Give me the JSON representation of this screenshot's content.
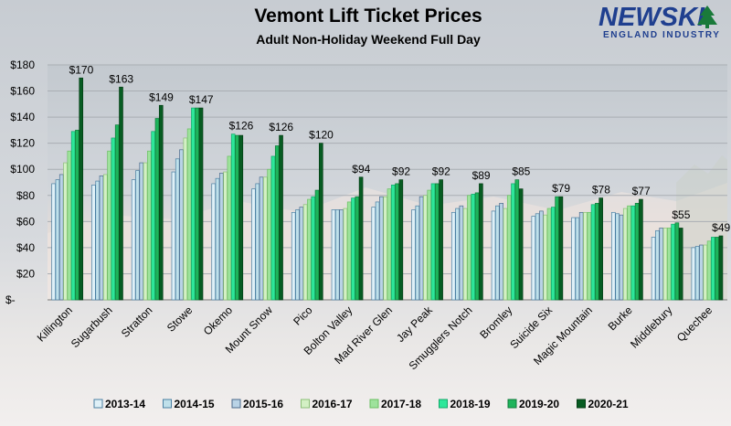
{
  "logo": {
    "main": "NEWSKI",
    "sub": "ENGLAND INDUSTRY"
  },
  "colors": {
    "series": [
      "#dff0f7",
      "#bfe0ea",
      "#b9d3e6",
      "#d3f0c4",
      "#9ee29c",
      "#2ee79a",
      "#1eb45b",
      "#075c22"
    ],
    "borders": [
      "#4a7fa2",
      "#4a7fa2",
      "#4a6a8a",
      "#8bbf77",
      "#6bbf62",
      "#13a86a",
      "#0e7a3a",
      "#043d14"
    ]
  },
  "chart_data": {
    "type": "bar",
    "title": "Vemont Lift Ticket Prices",
    "subtitle": "Adult Non-Holiday Weekend Full Day",
    "ylim": [
      0,
      180
    ],
    "yticks": [
      0,
      20,
      40,
      60,
      80,
      100,
      120,
      140,
      160,
      180
    ],
    "ytick_labels": [
      "$-",
      "$20",
      "$40",
      "$60",
      "$80",
      "$100",
      "$120",
      "$140",
      "$160",
      "$180"
    ],
    "categories": [
      "Killington",
      "Sugarbush",
      "Stratton",
      "Stowe",
      "Okemo",
      "Mount Snow",
      "Pico",
      "Bolton Valley",
      "Mad River Glen",
      "Jay Peak",
      "Smugglers Notch",
      "Bromley",
      "Suicide Six",
      "Magic Mountain",
      "Burke",
      "Middlebury",
      "Quechee"
    ],
    "series": [
      {
        "name": "2013-14",
        "values": [
          89,
          88,
          92,
          98,
          89,
          85,
          67,
          69,
          71,
          69,
          67,
          68,
          64,
          63,
          67,
          48,
          40
        ]
      },
      {
        "name": "2014-15",
        "values": [
          92,
          91,
          99,
          108,
          93,
          89,
          69,
          69,
          75,
          72,
          70,
          72,
          66,
          63,
          66,
          53,
          41
        ]
      },
      {
        "name": "2015-16",
        "values": [
          96,
          95,
          105,
          115,
          97,
          94,
          71,
          69,
          79,
          79,
          72,
          74,
          68,
          67,
          65,
          55,
          42
        ]
      },
      {
        "name": "2016-17",
        "values": [
          105,
          96,
          105,
          124,
          98,
          94,
          73,
          70,
          79,
          80,
          70,
          70,
          65,
          67,
          70,
          55,
          42
        ]
      },
      {
        "name": "2017-18",
        "values": [
          114,
          114,
          114,
          131,
          110,
          100,
          77,
          75,
          85,
          84,
          80,
          80,
          70,
          67,
          72,
          55,
          45
        ]
      },
      {
        "name": "2018-19",
        "values": [
          129,
          124,
          129,
          147,
          127,
          110,
          79,
          78,
          88,
          89,
          81,
          89,
          71,
          73,
          72,
          58,
          48
        ]
      },
      {
        "name": "2019-20",
        "values": [
          130,
          134,
          139,
          147,
          126,
          118,
          84,
          79,
          89,
          89,
          82,
          92,
          79,
          74,
          74,
          59,
          48
        ]
      },
      {
        "name": "2020-21",
        "values": [
          170,
          163,
          149,
          147,
          126,
          126,
          120,
          94,
          92,
          92,
          89,
          85,
          79,
          78,
          77,
          55,
          49
        ]
      }
    ],
    "data_labels": [
      "$170",
      "$163",
      "$149",
      "$147",
      "$126",
      "$126",
      "$120",
      "$94",
      "$92",
      "$92",
      "$89",
      "$85",
      "$79",
      "$78",
      "$77",
      "$55",
      "$49"
    ],
    "legend_position": "bottom"
  }
}
